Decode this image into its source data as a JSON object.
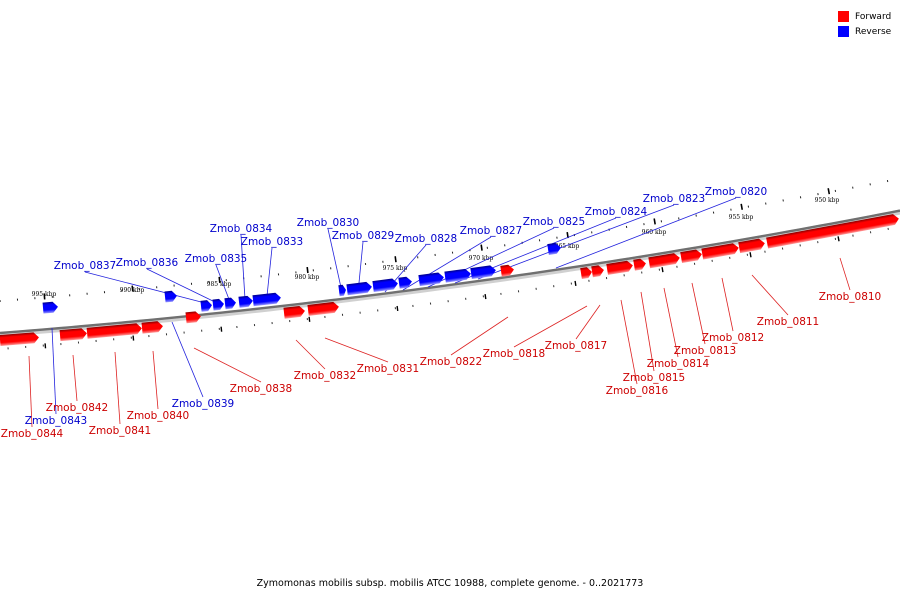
{
  "legend": [
    {
      "label": "Forward",
      "color": "#ff0000"
    },
    {
      "label": "Reverse",
      "color": "#0000ff"
    }
  ],
  "caption": "Zymomonas mobilis subsp. mobilis ATCC 10988, complete genome. - 0..2021773",
  "ticks": [
    "995 kbp",
    "990 kbp",
    "985 kbp",
    "980 kbp",
    "975 kbp",
    "970 kbp",
    "965 kbp",
    "960 kbp",
    "955 kbp",
    "950 kbp"
  ],
  "genes": [
    {
      "name": "Zmob_0810",
      "strand": "forward"
    },
    {
      "name": "Zmob_0811",
      "strand": "forward"
    },
    {
      "name": "Zmob_0812",
      "strand": "forward"
    },
    {
      "name": "Zmob_0813",
      "strand": "forward"
    },
    {
      "name": "Zmob_0814",
      "strand": "forward"
    },
    {
      "name": "Zmob_0815",
      "strand": "forward"
    },
    {
      "name": "Zmob_0816",
      "strand": "forward"
    },
    {
      "name": "Zmob_0817",
      "strand": "forward"
    },
    {
      "name": "Zmob_0818",
      "strand": "forward"
    },
    {
      "name": "Zmob_0820",
      "strand": "reverse"
    },
    {
      "name": "Zmob_0822",
      "strand": "forward"
    },
    {
      "name": "Zmob_0823",
      "strand": "reverse"
    },
    {
      "name": "Zmob_0824",
      "strand": "reverse"
    },
    {
      "name": "Zmob_0825",
      "strand": "reverse"
    },
    {
      "name": "Zmob_0827",
      "strand": "reverse"
    },
    {
      "name": "Zmob_0828",
      "strand": "reverse"
    },
    {
      "name": "Zmob_0829",
      "strand": "reverse"
    },
    {
      "name": "Zmob_0830",
      "strand": "reverse"
    },
    {
      "name": "Zmob_0831",
      "strand": "forward"
    },
    {
      "name": "Zmob_0832",
      "strand": "forward"
    },
    {
      "name": "Zmob_0833",
      "strand": "reverse"
    },
    {
      "name": "Zmob_0834",
      "strand": "reverse"
    },
    {
      "name": "Zmob_0835",
      "strand": "reverse"
    },
    {
      "name": "Zmob_0836",
      "strand": "reverse"
    },
    {
      "name": "Zmob_0837",
      "strand": "reverse"
    },
    {
      "name": "Zmob_0838",
      "strand": "forward"
    },
    {
      "name": "Zmob_0839",
      "strand": "reverse"
    },
    {
      "name": "Zmob_0840",
      "strand": "forward"
    },
    {
      "name": "Zmob_0841",
      "strand": "forward"
    },
    {
      "name": "Zmob_0842",
      "strand": "forward"
    },
    {
      "name": "Zmob_0843",
      "strand": "reverse"
    },
    {
      "name": "Zmob_0844",
      "strand": "forward"
    }
  ]
}
